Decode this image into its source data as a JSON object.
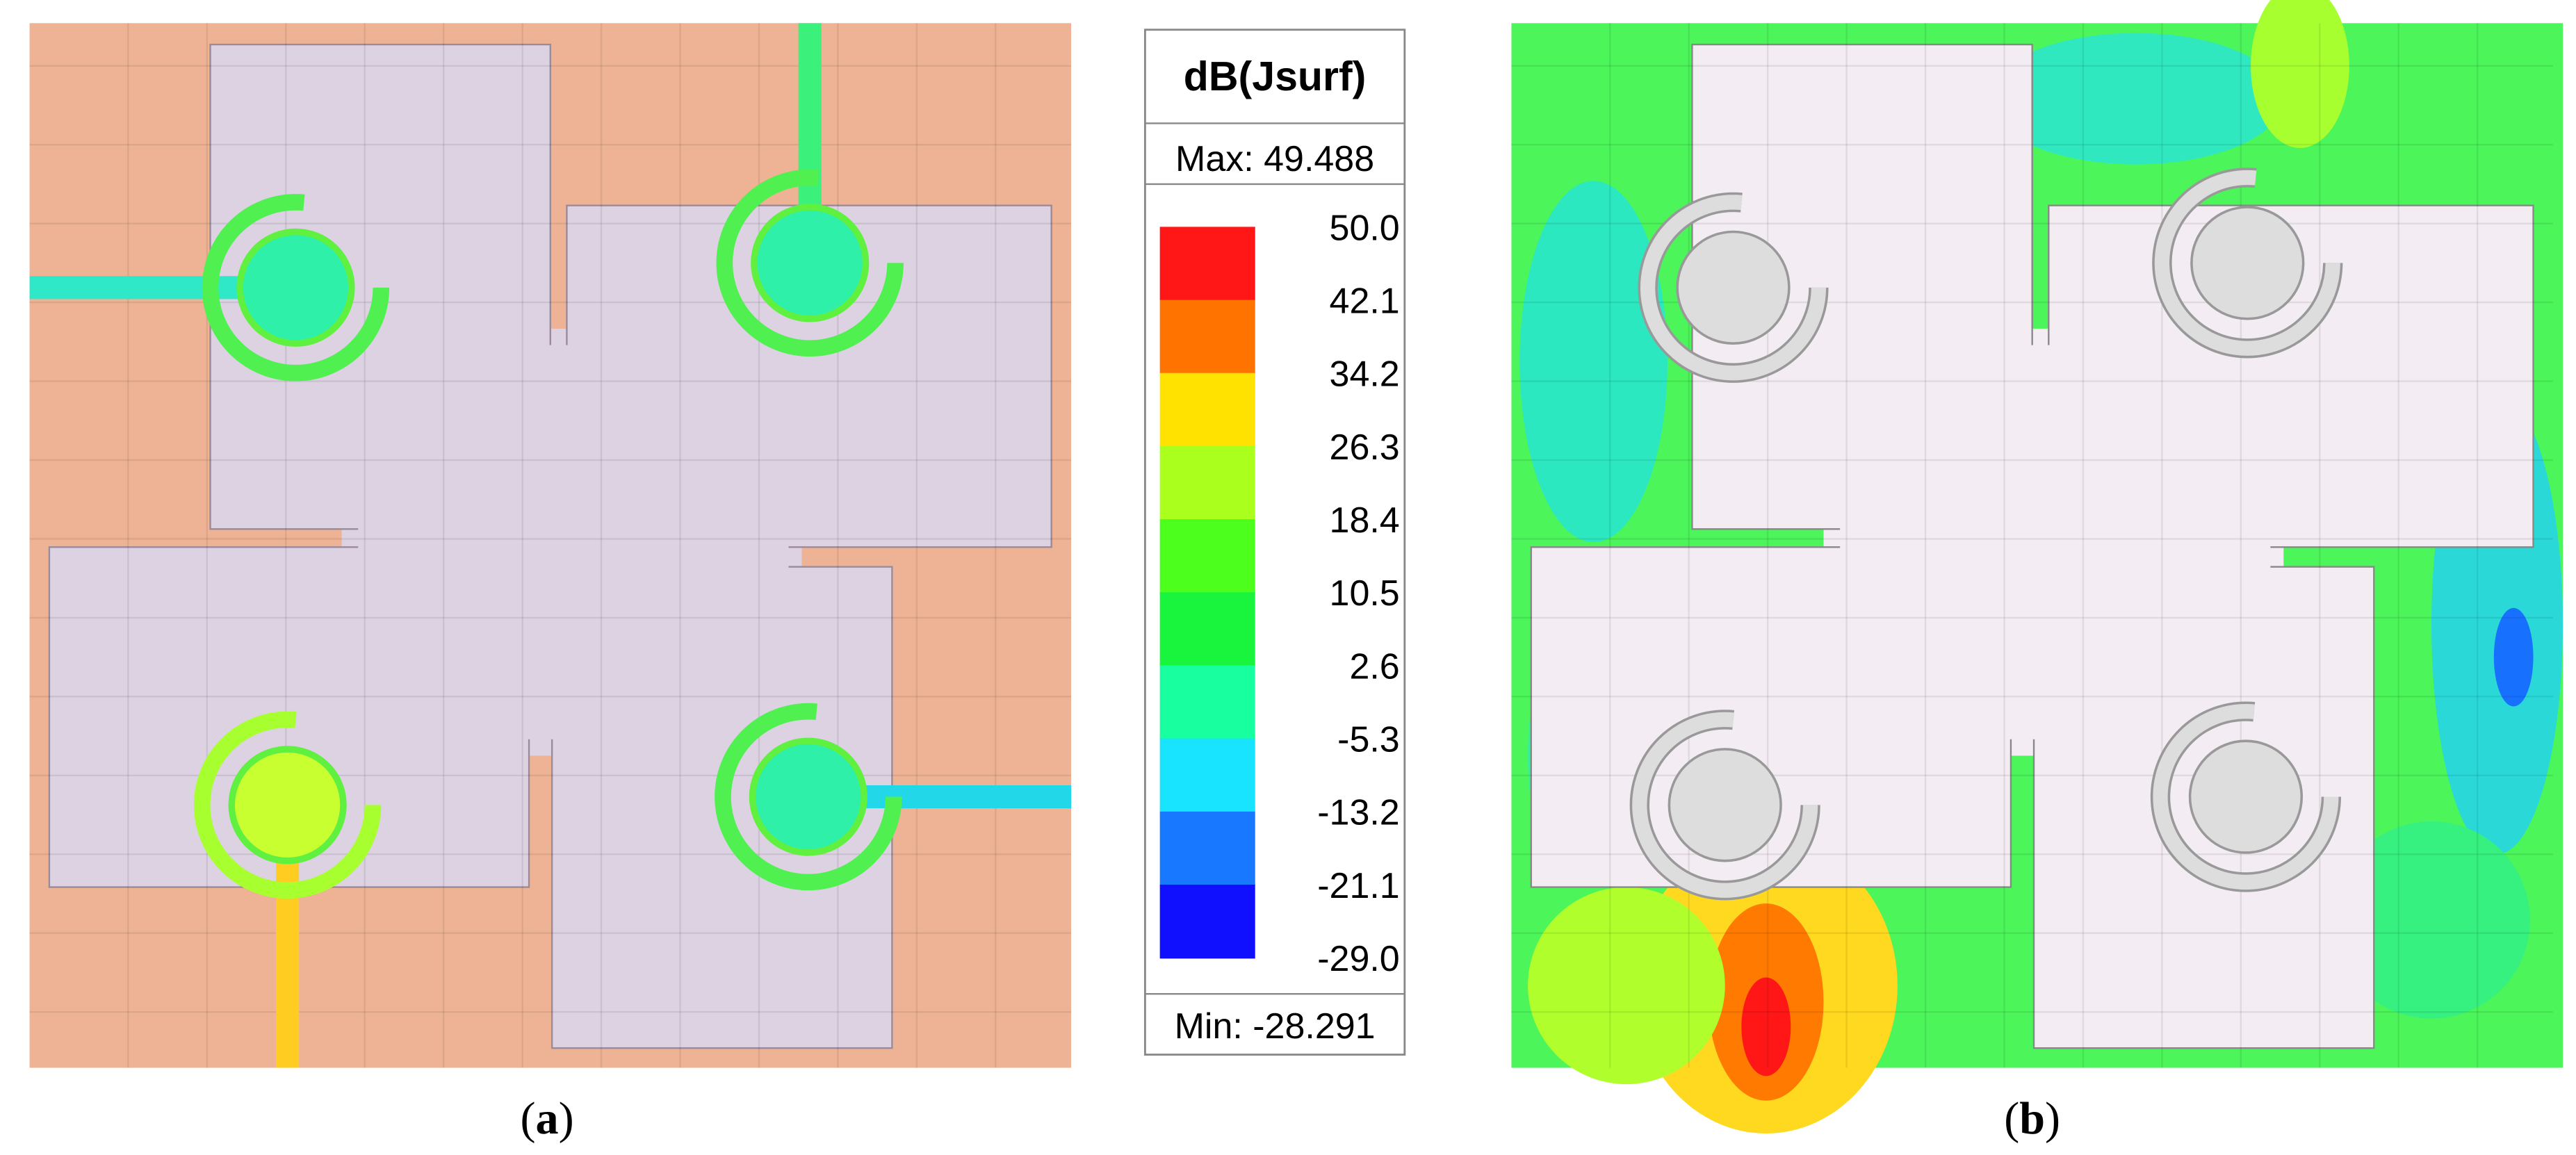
{
  "legend": {
    "title": "dB(Jsurf)",
    "max": "Max: 49.488",
    "min": "Min: -28.291",
    "ticks": [
      "50.0",
      "42.1",
      "34.2",
      "26.3",
      "18.4",
      "10.5",
      "2.6",
      "-5.3",
      "-13.2",
      "-21.1",
      "-29.0"
    ],
    "colors": [
      "#ff1616",
      "#ff7400",
      "#ffe200",
      "#aaff1c",
      "#4cff1c",
      "#18f53c",
      "#18ffa0",
      "#18e4ff",
      "#1878ff",
      "#1010ff"
    ]
  },
  "captions": [
    {
      "open": "(",
      "label": "a",
      "close": ")"
    },
    {
      "open": "(",
      "label": "b",
      "close": ")"
    }
  ]
}
